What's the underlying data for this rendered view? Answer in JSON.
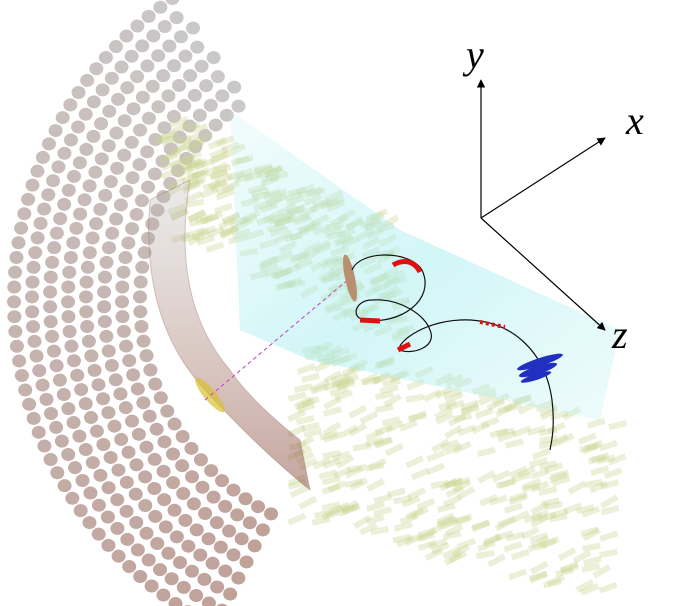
{
  "axes": {
    "labels": [
      "y",
      "x",
      "z"
    ]
  }
}
